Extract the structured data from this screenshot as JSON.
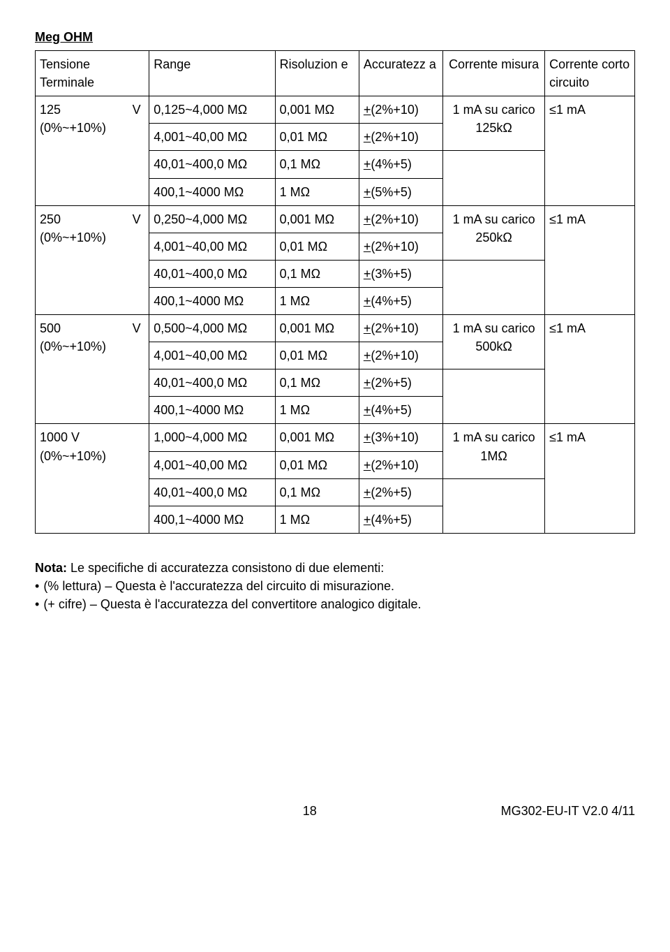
{
  "title": "Meg OHM",
  "headers": {
    "tension": "Tensione Terminale",
    "range": "Range",
    "resolution": "Risoluzion e",
    "accuracy": "Accuratezz a",
    "measure_current": "Corrente misura",
    "short_current": "Corrente corto circuito"
  },
  "groups": [
    {
      "tension": "125",
      "v": "V",
      "tolerance": "(0%~+10%)",
      "rows": [
        {
          "range": "0,125~4,000 MΩ",
          "res": "0,001 MΩ",
          "acc": "+(2%+10)"
        },
        {
          "range": "4,001~40,00 MΩ",
          "res": "0,01 MΩ",
          "acc": "+(2%+10)"
        },
        {
          "range": "40,01~400,0 MΩ",
          "res": "0,1 MΩ",
          "acc": "+(4%+5)"
        },
        {
          "range": "400,1~4000 MΩ",
          "res": "1 MΩ",
          "acc": "+(5%+5)"
        }
      ],
      "measure_current": "1 mA su carico 125kΩ",
      "short_current": "≤1 mA"
    },
    {
      "tension": "250",
      "v": "V",
      "tolerance": "(0%~+10%)",
      "rows": [
        {
          "range": "0,250~4,000 MΩ",
          "res": "0,001 MΩ",
          "acc": "+(2%+10)"
        },
        {
          "range": "4,001~40,00 MΩ",
          "res": "0,01 MΩ",
          "acc": "+(2%+10)"
        },
        {
          "range": "40,01~400,0 MΩ",
          "res": "0,1 MΩ",
          "acc": "+(3%+5)"
        },
        {
          "range": "400,1~4000 MΩ",
          "res": "1 MΩ",
          "acc": "+(4%+5)"
        }
      ],
      "measure_current": "1 mA su carico 250kΩ",
      "short_current": "≤1 mA"
    },
    {
      "tension": "500",
      "v": "V",
      "tolerance": "(0%~+10%)",
      "rows": [
        {
          "range": "0,500~4,000 MΩ",
          "res": "0,001 MΩ",
          "acc": "+(2%+10)"
        },
        {
          "range": "4,001~40,00 MΩ",
          "res": "0,01 MΩ",
          "acc": "+(2%+10)"
        },
        {
          "range": "40,01~400,0 MΩ",
          "res": "0,1 MΩ",
          "acc": "+(2%+5)"
        },
        {
          "range": "400,1~4000 MΩ",
          "res": "1 MΩ",
          "acc": "+(4%+5)"
        }
      ],
      "measure_current": "1 mA su carico 500kΩ",
      "short_current": "≤1 mA"
    },
    {
      "tension": "1000 V",
      "v": "",
      "tolerance": "(0%~+10%)",
      "rows": [
        {
          "range": "1,000~4,000 MΩ",
          "res": "0,001 MΩ",
          "acc": "+(3%+10)"
        },
        {
          "range": "4,001~40,00 MΩ",
          "res": "0,01 MΩ",
          "acc": "+(2%+10)"
        },
        {
          "range": "40,01~400,0 MΩ",
          "res": "0,1 MΩ",
          "acc": "+(2%+5)"
        },
        {
          "range": "400,1~4000 MΩ",
          "res": "1 MΩ",
          "acc": "+(4%+5)"
        }
      ],
      "measure_current": "1 mA su carico 1MΩ",
      "short_current": "≤1 mA"
    }
  ],
  "note_label": "Nota:",
  "note_text": " Le specifiche di accuratezza consistono di due elementi:",
  "bullets": [
    "(% lettura) – Questa è l'accuratezza del circuito di misurazione.",
    "(+ cifre) – Questa è l'accuratezza del convertitore analogico digitale."
  ],
  "footer": {
    "page": "18",
    "doc": "MG302-EU-IT V2.0  4/11"
  }
}
